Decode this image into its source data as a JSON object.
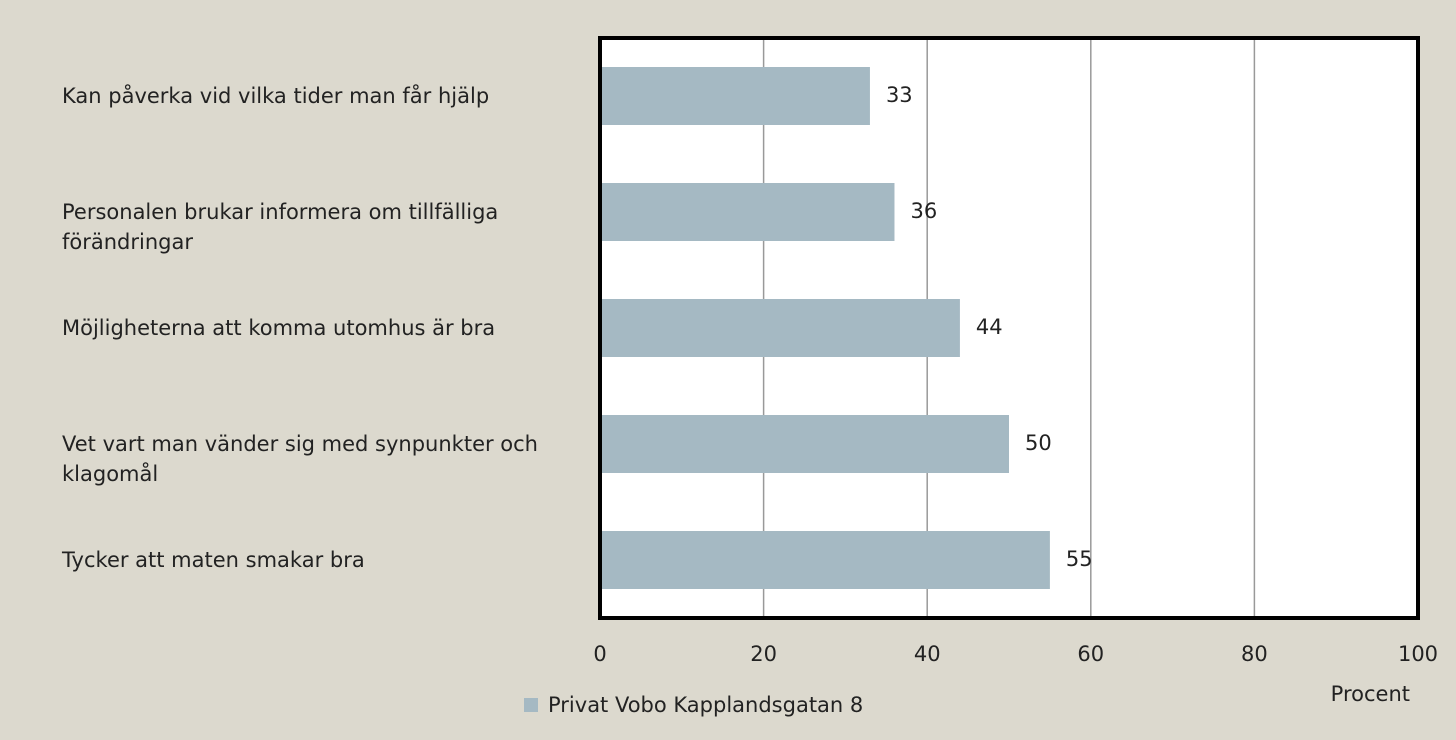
{
  "chart_data": {
    "type": "bar",
    "orientation": "horizontal",
    "categories": [
      "Kan påverka vid vilka tider man får hjälp",
      "Personalen brukar informera om tillfälliga förändringar",
      "Möjligheterna att komma utomhus är bra",
      "Vet vart man vänder sig med synpunkter och klagomål",
      "Tycker att maten smakar bra"
    ],
    "series": [
      {
        "name": "Privat Vobo Kapplandsgatan 8",
        "color": "#a5b9c3",
        "values": [
          33,
          36,
          44,
          50,
          55
        ]
      }
    ],
    "x_label": "Procent",
    "xlim": [
      0,
      100
    ],
    "xticks": [
      0,
      20,
      40,
      60,
      80,
      100
    ],
    "grid": true
  }
}
